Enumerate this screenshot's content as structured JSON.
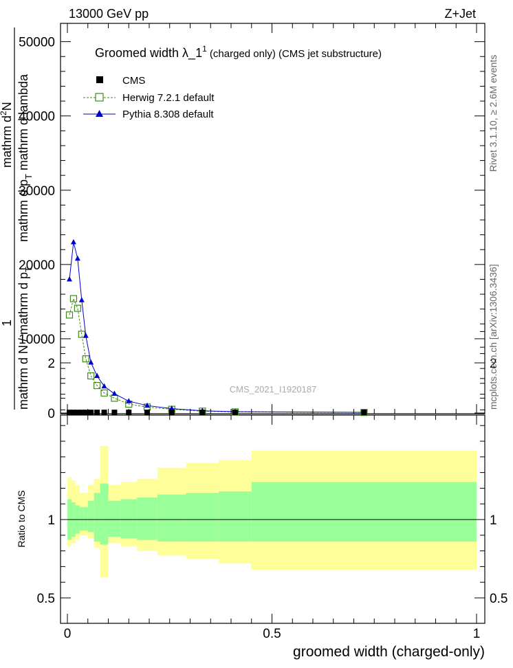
{
  "header": {
    "left": "13000 GeV pp",
    "right": "Z+Jet"
  },
  "title": {
    "main": "Groomed width  λ_1",
    "sup": "1",
    "paren": " (charged only) (CMS jet substructure)"
  },
  "side_labels": {
    "rivet": "Rivet 3.1.10, ≥ 2.6M events",
    "mcplots": "mcplots.cern.ch [arXiv:1306.3436]"
  },
  "analysis_tag": "CMS_2021_I1920187",
  "ylabel_main": {
    "numerator": "1",
    "denominator": "mathrm d N / mathrm d p",
    "denominator_sub": "T",
    "right_top": "mathrm d",
    "right_top_sup": "2",
    "right_top_tail": "N",
    "right_bottom": "mathrm d p",
    "right_bottom_sub": "T",
    "right_bottom_tail": " mathrm d lambda"
  },
  "ylabel_ratio": "Ratio to CMS",
  "xlabel": "groomed width (charged-only)",
  "colors": {
    "cms": "#000000",
    "herwig": "#3a8a14",
    "pythia": "#0000cc",
    "band_inner": "#99ff99",
    "band_outer": "#ffff99"
  },
  "chart_data": {
    "type": "line",
    "xlim": [
      0,
      1
    ],
    "main_ylim": [
      0,
      52000
    ],
    "main_yticks": [
      0,
      10000,
      20000,
      30000,
      40000,
      50000
    ],
    "main_ytick_labels": [
      "0",
      "10000",
      "20000",
      "30000",
      "40000",
      "50000"
    ],
    "ratio_ylim": [
      0.4,
      2.3
    ],
    "ratio_yticks": [
      0.5,
      1,
      2
    ],
    "ratio_ytick_labels": [
      "0.5",
      "1",
      "2"
    ],
    "xticks": [
      0,
      0.5,
      1
    ],
    "xtick_labels": [
      "0",
      "0.5",
      "1"
    ],
    "bin_edges": [
      0,
      0.01,
      0.02,
      0.03,
      0.04,
      0.05,
      0.065,
      0.08,
      0.1,
      0.13,
      0.17,
      0.22,
      0.29,
      0.37,
      0.45,
      1.0
    ],
    "legend": {
      "position": "top-left",
      "entries": [
        {
          "label": "CMS",
          "marker": "square-filled"
        },
        {
          "label": "Herwig 7.2.1 default",
          "marker": "square-open"
        },
        {
          "label": "Pythia 8.308 default",
          "marker": "triangle-filled"
        }
      ]
    },
    "series": [
      {
        "name": "CMS",
        "x": [
          0.005,
          0.015,
          0.025,
          0.035,
          0.045,
          0.0575,
          0.0725,
          0.09,
          0.115,
          0.15,
          0.195,
          0.255,
          0.33,
          0.41,
          0.725
        ],
        "y": [
          80,
          80,
          80,
          80,
          80,
          80,
          80,
          80,
          80,
          80,
          80,
          80,
          80,
          80,
          80
        ]
      },
      {
        "name": "Herwig 7.2.1 default",
        "x": [
          0.005,
          0.015,
          0.025,
          0.035,
          0.045,
          0.0575,
          0.0725,
          0.09,
          0.115,
          0.15,
          0.195,
          0.255,
          0.33,
          0.41,
          0.725
        ],
        "y": [
          13200,
          15400,
          14100,
          10600,
          7300,
          5000,
          3700,
          2700,
          2000,
          1200,
          800,
          500,
          250,
          150,
          80
        ]
      },
      {
        "name": "Pythia 8.308 default",
        "x": [
          0.005,
          0.015,
          0.025,
          0.035,
          0.045,
          0.0575,
          0.0725,
          0.09,
          0.115,
          0.15,
          0.195,
          0.255,
          0.33,
          0.41,
          0.725
        ],
        "y": [
          18000,
          23000,
          20800,
          15200,
          10400,
          6800,
          5000,
          3600,
          2600,
          1600,
          1000,
          600,
          300,
          180,
          90
        ]
      }
    ],
    "ratio_band": {
      "inner_low": [
        0.87,
        0.89,
        0.91,
        0.93,
        0.93,
        0.92,
        0.86,
        0.84,
        0.89,
        0.88,
        0.87,
        0.86,
        0.86,
        0.86,
        0.86
      ],
      "inner_high": [
        1.13,
        1.11,
        1.09,
        1.08,
        1.08,
        1.12,
        1.17,
        1.23,
        1.12,
        1.13,
        1.14,
        1.16,
        1.17,
        1.18,
        1.24
      ],
      "outer_low": [
        0.83,
        0.85,
        0.87,
        0.9,
        0.9,
        0.88,
        0.82,
        0.63,
        0.85,
        0.83,
        0.8,
        0.77,
        0.75,
        0.72,
        0.68
      ],
      "outer_high": [
        1.27,
        1.25,
        1.22,
        1.17,
        1.17,
        1.22,
        1.26,
        1.47,
        1.22,
        1.24,
        1.26,
        1.33,
        1.36,
        1.38,
        1.44
      ]
    }
  }
}
